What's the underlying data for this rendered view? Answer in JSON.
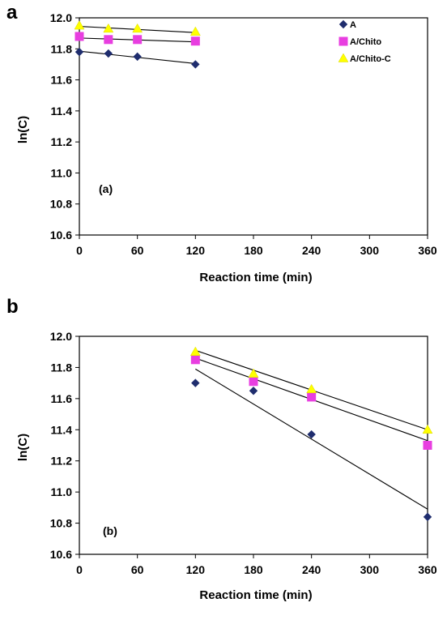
{
  "panels": [
    {
      "letter": "a"
    },
    {
      "letter": "b"
    }
  ],
  "chart_data": [
    {
      "type": "scatter",
      "title": "",
      "annotation": "(a)",
      "xlabel": "Reaction time (min)",
      "ylabel": "ln(C)",
      "xlim": [
        0,
        360
      ],
      "ylim": [
        10.6,
        12.0
      ],
      "xticks": [
        0,
        60,
        120,
        180,
        240,
        300,
        360
      ],
      "yticks": [
        10.6,
        10.8,
        11.0,
        11.2,
        11.4,
        11.6,
        11.8,
        12.0
      ],
      "grid": false,
      "legend_position": "top-right",
      "series": [
        {
          "name": "A",
          "marker": "diamond",
          "color": "#1f2d6e",
          "x": [
            0,
            30,
            60,
            120
          ],
          "y": [
            11.78,
            11.77,
            11.75,
            11.7
          ],
          "fit": [
            [
              0,
              11.785
            ],
            [
              120,
              11.705
            ]
          ]
        },
        {
          "name": "A/Chito",
          "marker": "square",
          "color": "#e83ee0",
          "x": [
            0,
            30,
            60,
            120
          ],
          "y": [
            11.88,
            11.86,
            11.86,
            11.85
          ],
          "fit": [
            [
              0,
              11.87
            ],
            [
              120,
              11.845
            ]
          ]
        },
        {
          "name": "A/Chito-C",
          "marker": "triangle",
          "color": "#ffff00",
          "x": [
            0,
            30,
            60,
            120
          ],
          "y": [
            11.95,
            11.93,
            11.93,
            11.91
          ],
          "fit": [
            [
              0,
              11.945
            ],
            [
              120,
              11.905
            ]
          ]
        }
      ]
    },
    {
      "type": "scatter",
      "title": "",
      "annotation": "(b)",
      "xlabel": "Reaction time (min)",
      "ylabel": "ln(C)",
      "xlim": [
        0,
        360
      ],
      "ylim": [
        10.6,
        12.0
      ],
      "xticks": [
        0,
        60,
        120,
        180,
        240,
        300,
        360
      ],
      "yticks": [
        10.6,
        10.8,
        11.0,
        11.2,
        11.4,
        11.6,
        11.8,
        12.0
      ],
      "grid": false,
      "series": [
        {
          "name": "A",
          "marker": "diamond",
          "color": "#1f2d6e",
          "x": [
            120,
            180,
            240,
            360
          ],
          "y": [
            11.7,
            11.65,
            11.37,
            10.84
          ],
          "fit": [
            [
              120,
              11.79
            ],
            [
              360,
              10.89
            ]
          ]
        },
        {
          "name": "A/Chito",
          "marker": "square",
          "color": "#e83ee0",
          "x": [
            120,
            180,
            240,
            360
          ],
          "y": [
            11.85,
            11.71,
            11.61,
            11.3
          ],
          "fit": [
            [
              120,
              11.86
            ],
            [
              360,
              11.33
            ]
          ]
        },
        {
          "name": "A/Chito-C",
          "marker": "triangle",
          "color": "#ffff00",
          "x": [
            120,
            180,
            240,
            360
          ],
          "y": [
            11.9,
            11.76,
            11.66,
            11.4
          ],
          "fit": [
            [
              120,
              11.91
            ],
            [
              360,
              11.4
            ]
          ]
        }
      ]
    }
  ]
}
